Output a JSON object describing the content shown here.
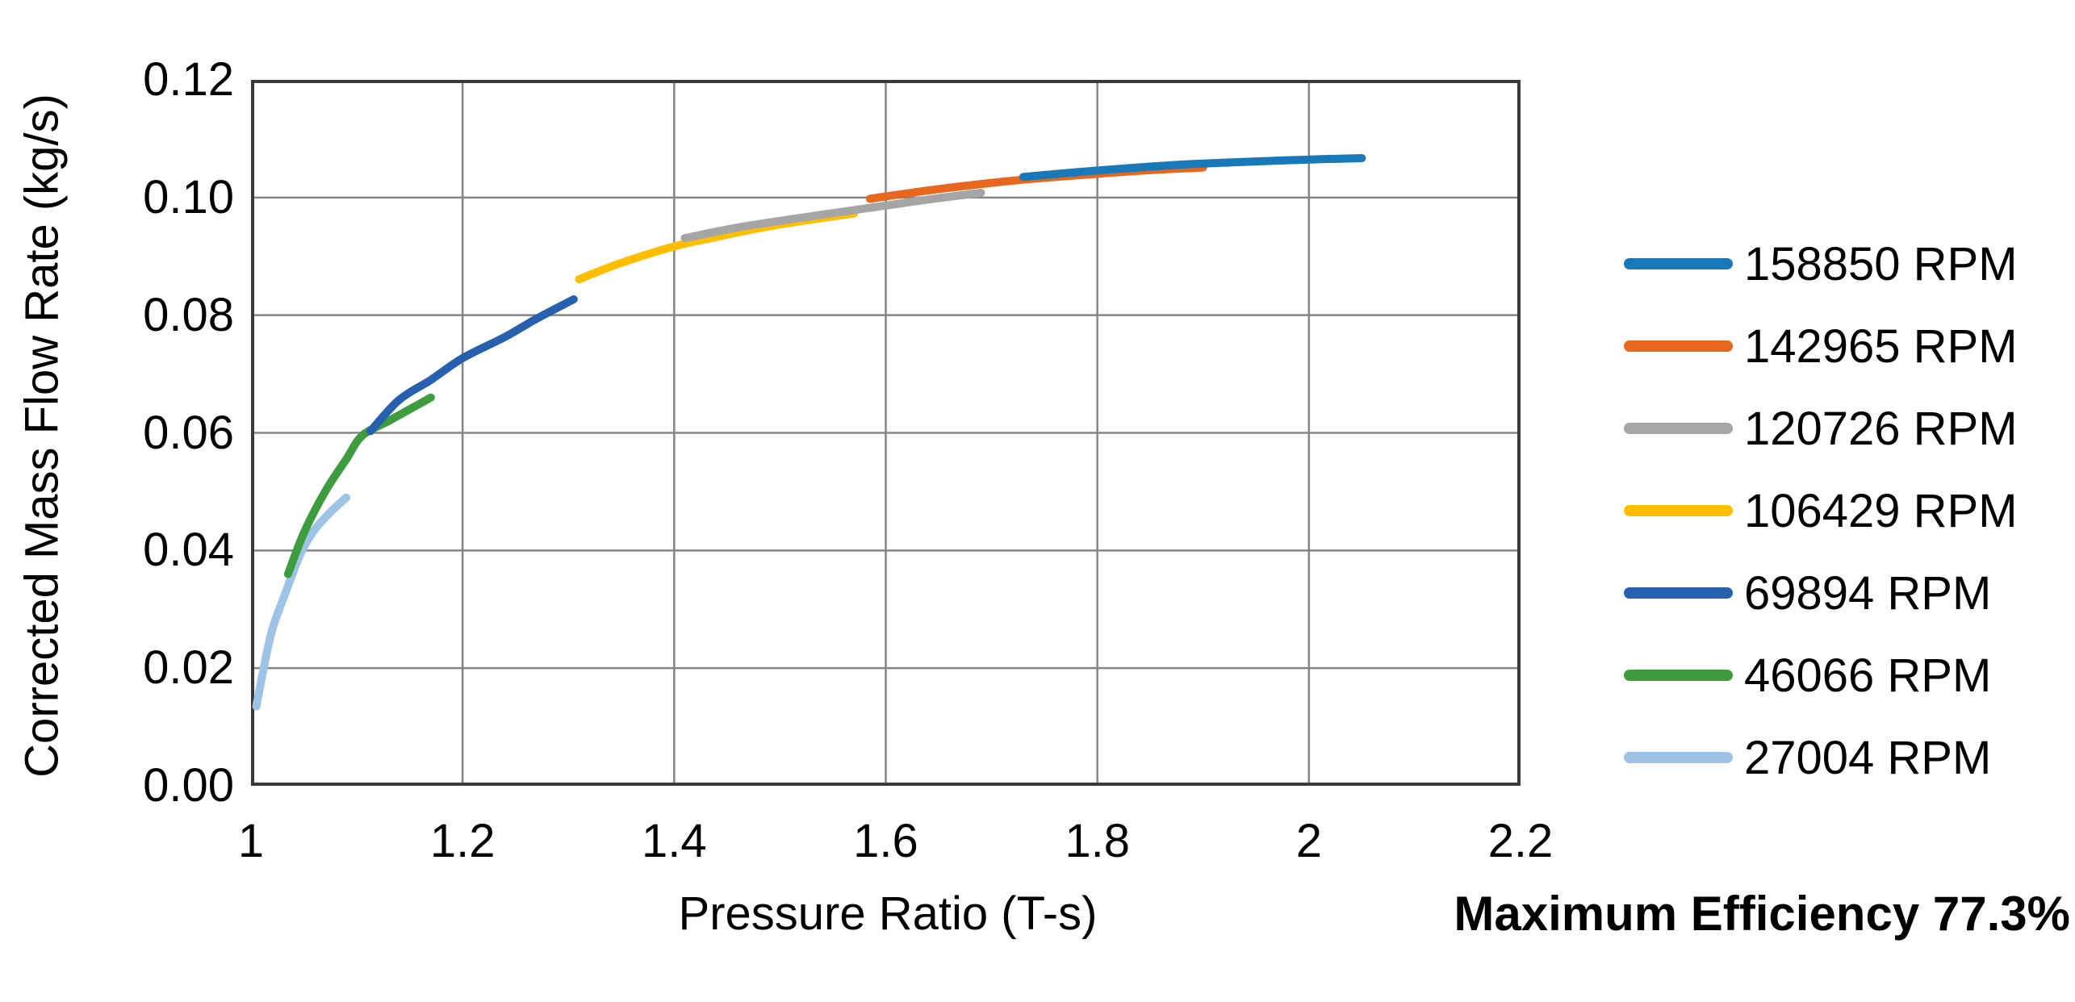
{
  "chart_data": {
    "type": "line",
    "title": "",
    "xlabel": "Pressure Ratio (T-s)",
    "ylabel": "Corrected Mass Flow Rate (kg/s)",
    "xlim": [
      1.0,
      2.2
    ],
    "ylim": [
      0.0,
      0.12
    ],
    "grid": true,
    "legend_position": "right",
    "frame_color": "#3A3A3A",
    "grid_color": "#858585",
    "x_ticks": [
      {
        "v": 1.0,
        "label": "1"
      },
      {
        "v": 1.2,
        "label": "1.2"
      },
      {
        "v": 1.4,
        "label": "1.4"
      },
      {
        "v": 1.6,
        "label": "1.6"
      },
      {
        "v": 1.8,
        "label": "1.8"
      },
      {
        "v": 2.0,
        "label": "2"
      },
      {
        "v": 2.2,
        "label": "2.2"
      }
    ],
    "y_ticks": [
      {
        "v": 0.0,
        "label": "0.00"
      },
      {
        "v": 0.02,
        "label": "0.02"
      },
      {
        "v": 0.04,
        "label": "0.04"
      },
      {
        "v": 0.06,
        "label": "0.06"
      },
      {
        "v": 0.08,
        "label": "0.08"
      },
      {
        "v": 0.1,
        "label": "0.10"
      },
      {
        "v": 0.12,
        "label": "0.12"
      }
    ],
    "series": [
      {
        "name": "158850 RPM",
        "color": "#1878B8",
        "points": [
          [
            1.73,
            0.1035
          ],
          [
            1.78,
            0.1043
          ],
          [
            1.83,
            0.105
          ],
          [
            1.88,
            0.1056
          ],
          [
            1.93,
            0.106
          ],
          [
            1.99,
            0.1064
          ],
          [
            2.05,
            0.1067
          ]
        ]
      },
      {
        "name": "142965 RPM",
        "color": "#E8671F",
        "points": [
          [
            1.585,
            0.0998
          ],
          [
            1.64,
            0.1012
          ],
          [
            1.69,
            0.1023
          ],
          [
            1.74,
            0.1032
          ],
          [
            1.79,
            0.1039
          ],
          [
            1.845,
            0.1046
          ],
          [
            1.9,
            0.1051
          ]
        ]
      },
      {
        "name": "120726 RPM",
        "color": "#A5A5A5",
        "points": [
          [
            1.41,
            0.0931
          ],
          [
            1.46,
            0.0949
          ],
          [
            1.51,
            0.0963
          ],
          [
            1.56,
            0.0976
          ],
          [
            1.61,
            0.0989
          ],
          [
            1.65,
            0.0999
          ],
          [
            1.69,
            0.1008
          ]
        ]
      },
      {
        "name": "106429 RPM",
        "color": "#FFBF00",
        "points": [
          [
            1.31,
            0.0861
          ],
          [
            1.35,
            0.0889
          ],
          [
            1.4,
            0.0917
          ],
          [
            1.44,
            0.0933
          ],
          [
            1.48,
            0.0948
          ],
          [
            1.52,
            0.096
          ],
          [
            1.57,
            0.0973
          ]
        ]
      },
      {
        "name": "69894 RPM",
        "color": "#2760AE",
        "points": [
          [
            1.113,
            0.0603
          ],
          [
            1.14,
            0.0656
          ],
          [
            1.17,
            0.069
          ],
          [
            1.2,
            0.0727
          ],
          [
            1.24,
            0.0763
          ],
          [
            1.27,
            0.0794
          ],
          [
            1.305,
            0.0827
          ]
        ]
      },
      {
        "name": "46066 RPM",
        "color": "#3D9C3D",
        "points": [
          [
            1.035,
            0.036
          ],
          [
            1.05,
            0.043
          ],
          [
            1.07,
            0.05
          ],
          [
            1.09,
            0.0555
          ],
          [
            1.105,
            0.0595
          ],
          [
            1.13,
            0.062
          ],
          [
            1.15,
            0.064
          ],
          [
            1.17,
            0.066
          ]
        ]
      },
      {
        "name": "27004 RPM",
        "color": "#9DC3E6",
        "points": [
          [
            1.005,
            0.0135
          ],
          [
            1.012,
            0.02
          ],
          [
            1.02,
            0.0265
          ],
          [
            1.032,
            0.0325
          ],
          [
            1.047,
            0.0395
          ],
          [
            1.06,
            0.0435
          ],
          [
            1.075,
            0.0465
          ],
          [
            1.09,
            0.049
          ]
        ]
      }
    ],
    "annotation": "Maximum Efficiency 77.3%"
  }
}
